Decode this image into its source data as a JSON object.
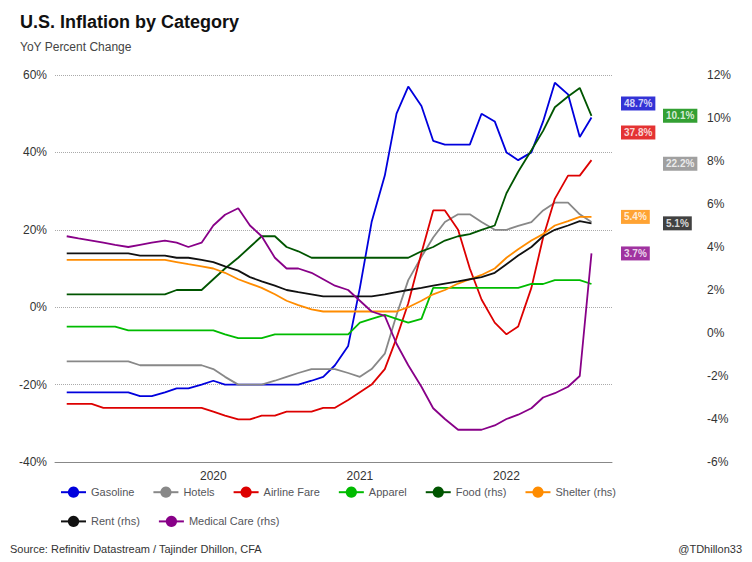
{
  "chart_data": {
    "type": "line",
    "title": "U.S. Inflation by Category",
    "subtitle": "YoY Percent Change",
    "source": "Source: Refinitiv Datastream / Tajinder Dhillon, CFA",
    "watermark": "@TDhillon33",
    "x": [
      2019.0,
      2019.08,
      2019.17,
      2019.25,
      2019.33,
      2019.42,
      2019.5,
      2019.58,
      2019.67,
      2019.75,
      2019.83,
      2019.92,
      2020.0,
      2020.08,
      2020.17,
      2020.25,
      2020.33,
      2020.42,
      2020.5,
      2020.58,
      2020.67,
      2020.75,
      2020.83,
      2020.92,
      2021.0,
      2021.08,
      2021.17,
      2021.25,
      2021.33,
      2021.42,
      2021.5,
      2021.58,
      2021.67,
      2021.75,
      2021.83,
      2021.92,
      2022.0,
      2022.08,
      2022.17,
      2022.25,
      2022.33,
      2022.42,
      2022.5,
      2022.58
    ],
    "xlim": [
      2018.92,
      2022.72
    ],
    "xticks": [
      2020,
      2021,
      2022
    ],
    "ylim": [
      -40,
      60
    ],
    "yticks": [
      {
        "value": -40,
        "label": "-40%"
      },
      {
        "value": -20,
        "label": "-20%"
      },
      {
        "value": 0,
        "label": "0%"
      },
      {
        "value": 20,
        "label": "20%"
      },
      {
        "value": 40,
        "label": "40%"
      },
      {
        "value": 60,
        "label": "60%"
      }
    ],
    "y2lim": [
      -6,
      12
    ],
    "y2ticks": [
      {
        "value": -6,
        "label": "-6%"
      },
      {
        "value": -4,
        "label": "-4%"
      },
      {
        "value": -2,
        "label": "-2%"
      },
      {
        "value": 0,
        "label": "0%"
      },
      {
        "value": 2,
        "label": "2%"
      },
      {
        "value": 4,
        "label": "4%"
      },
      {
        "value": 6,
        "label": "6%"
      },
      {
        "value": 8,
        "label": "8%"
      },
      {
        "value": 10,
        "label": "10%"
      },
      {
        "value": 12,
        "label": "12%"
      }
    ],
    "grid": true,
    "legend": "bottom",
    "series": [
      {
        "name": "Gasoline",
        "color": "#0000dd",
        "values": [
          -22,
          -22,
          -22,
          -22,
          -22,
          -22,
          -23,
          -23,
          -22,
          -21,
          -21,
          -20,
          -19,
          -20,
          -20,
          -20,
          -20,
          -20,
          -20,
          -20,
          -19,
          -18,
          -15,
          -10,
          5,
          22,
          34,
          50,
          57,
          52,
          43,
          42,
          42,
          42,
          50,
          48,
          40,
          38,
          40,
          48,
          58,
          55,
          44,
          49
        ]
      },
      {
        "name": "Hotels",
        "color": "#888888",
        "values": [
          -14,
          -14,
          -14,
          -14,
          -14,
          -14,
          -15,
          -15,
          -15,
          -15,
          -15,
          -15,
          -16,
          -18,
          -20,
          -20,
          -20,
          -19,
          -18,
          -17,
          -16,
          -16,
          -16,
          -17,
          -18,
          -16,
          -12,
          -2,
          7,
          13,
          18,
          22,
          24,
          24,
          22,
          20,
          20,
          21,
          22,
          25,
          27,
          27,
          24,
          22
        ]
      },
      {
        "name": "Airline Fare",
        "color": "#dd0000",
        "values": [
          -25,
          -25,
          -25,
          -26,
          -26,
          -26,
          -26,
          -26,
          -26,
          -26,
          -26,
          -26,
          -27,
          -28,
          -29,
          -29,
          -28,
          -28,
          -27,
          -27,
          -27,
          -26,
          -26,
          -24,
          -22,
          -20,
          -16,
          -8,
          1,
          14,
          25,
          25,
          20,
          10,
          2,
          -4,
          -7,
          -5,
          5,
          18,
          28,
          34,
          34,
          38
        ]
      },
      {
        "name": "Apparel",
        "color": "#00bb00",
        "values": [
          -5,
          -5,
          -5,
          -5,
          -5,
          -6,
          -6,
          -6,
          -6,
          -6,
          -6,
          -6,
          -6,
          -7,
          -8,
          -8,
          -8,
          -7,
          -7,
          -7,
          -7,
          -7,
          -7,
          -7,
          -4,
          -3,
          -2,
          -3,
          -4,
          -3,
          5,
          5,
          5,
          5,
          5,
          5,
          5,
          5,
          6,
          6,
          7,
          7,
          7,
          6
        ]
      },
      {
        "name": "Food (rhs)",
        "color": "#005500",
        "axis": "y2",
        "values": [
          1.8,
          1.8,
          1.8,
          1.8,
          1.8,
          1.8,
          1.8,
          1.8,
          1.8,
          2.0,
          2.0,
          2.0,
          2.5,
          3.0,
          3.5,
          4.0,
          4.5,
          4.5,
          4.0,
          3.8,
          3.5,
          3.5,
          3.5,
          3.5,
          3.5,
          3.5,
          3.5,
          3.5,
          3.5,
          3.8,
          4.0,
          4.3,
          4.5,
          4.6,
          4.8,
          5.0,
          6.5,
          7.5,
          8.5,
          9.4,
          10.5,
          11.0,
          11.4,
          10.1
        ]
      },
      {
        "name": "Shelter (rhs)",
        "color": "#ff8c00",
        "axis": "y2",
        "values": [
          3.4,
          3.4,
          3.4,
          3.4,
          3.4,
          3.4,
          3.4,
          3.4,
          3.4,
          3.3,
          3.2,
          3.1,
          3.0,
          2.8,
          2.5,
          2.3,
          2.1,
          1.8,
          1.5,
          1.3,
          1.1,
          1.0,
          1.0,
          1.0,
          1.0,
          1.0,
          1.0,
          1.0,
          1.2,
          1.5,
          1.8,
          2.0,
          2.3,
          2.5,
          2.7,
          3.0,
          3.5,
          3.9,
          4.3,
          4.6,
          5.0,
          5.2,
          5.4,
          5.4
        ]
      },
      {
        "name": "Rent (rhs)",
        "color": "#111111",
        "axis": "y2",
        "values": [
          3.7,
          3.7,
          3.7,
          3.7,
          3.7,
          3.7,
          3.6,
          3.6,
          3.6,
          3.5,
          3.5,
          3.4,
          3.3,
          3.1,
          2.9,
          2.6,
          2.4,
          2.2,
          2.0,
          1.9,
          1.8,
          1.7,
          1.7,
          1.7,
          1.7,
          1.7,
          1.8,
          1.9,
          2.0,
          2.1,
          2.2,
          2.3,
          2.4,
          2.5,
          2.6,
          2.8,
          3.2,
          3.6,
          4.0,
          4.5,
          4.8,
          5.0,
          5.2,
          5.1
        ]
      },
      {
        "name": "Medical Care (rhs)",
        "color": "#880088",
        "axis": "y2",
        "values": [
          4.5,
          4.4,
          4.3,
          4.2,
          4.1,
          4.0,
          4.1,
          4.2,
          4.3,
          4.2,
          4.0,
          4.2,
          5.0,
          5.5,
          5.8,
          5.0,
          4.5,
          3.5,
          3.0,
          3.0,
          2.8,
          2.5,
          2.2,
          2.0,
          1.5,
          1.0,
          0.8,
          -0.5,
          -1.5,
          -2.5,
          -3.5,
          -4.0,
          -4.5,
          -4.5,
          -4.5,
          -4.3,
          -4.0,
          -3.8,
          -3.5,
          -3.0,
          -2.8,
          -2.5,
          -2.0,
          3.7
        ]
      }
    ],
    "annotations": [
      {
        "text": "48.7%",
        "color": "#0000cc",
        "y": 10.67,
        "axis": "y2"
      },
      {
        "text": "10.1%",
        "color": "#008800",
        "y": 10.1,
        "axis": "y2"
      },
      {
        "text": "37.8%",
        "color": "#dd0000",
        "y": 9.33,
        "axis": "y2"
      },
      {
        "text": "22.2%",
        "color": "#888888",
        "y": 7.87,
        "axis": "y2"
      },
      {
        "text": "5.4%",
        "color": "#ff8c00",
        "y": 5.4,
        "axis": "y2"
      },
      {
        "text": "5.1%",
        "color": "#111111",
        "y": 5.1,
        "axis": "y2"
      },
      {
        "text": "3.7%",
        "color": "#880088",
        "y": 3.7,
        "axis": "y2"
      }
    ]
  }
}
